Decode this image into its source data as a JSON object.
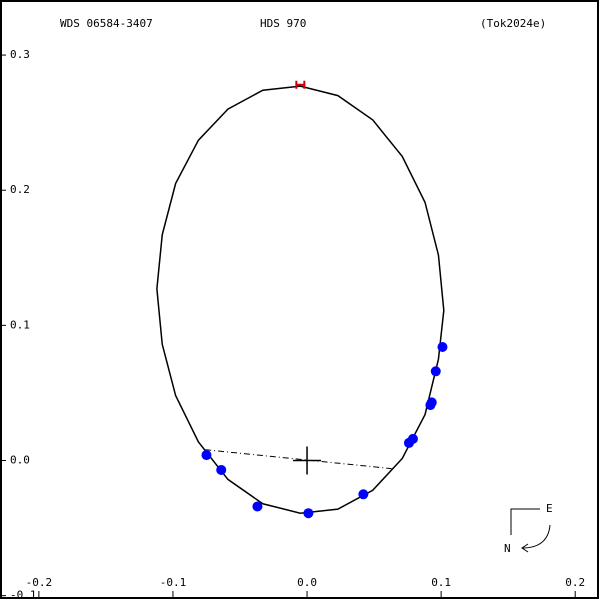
{
  "chart_data": {
    "type": "scatter",
    "header": [
      "WDS 06584-3407",
      "HDS 970",
      "(Tok2024e)"
    ],
    "x": [
      -0.075,
      -0.064,
      -0.037,
      0.001,
      0.042,
      0.076,
      0.079,
      0.092,
      0.093,
      0.096,
      0.101
    ],
    "y": [
      0.004,
      -0.007,
      -0.034,
      -0.039,
      -0.025,
      0.013,
      0.016,
      0.041,
      0.043,
      0.066,
      0.084
    ],
    "color": "#0000ff",
    "orbit": {
      "color": "#000000",
      "x": [
        0.102,
        0.098,
        0.088,
        0.071,
        0.049,
        0.023,
        -0.005,
        -0.033,
        -0.059,
        -0.081,
        -0.098,
        -0.108,
        -0.112,
        -0.108,
        -0.098,
        -0.081,
        -0.059,
        -0.033,
        -0.005,
        0.023,
        0.049,
        0.071,
        0.088,
        0.098
      ],
      "y": [
        0.111,
        0.152,
        0.191,
        0.225,
        0.252,
        0.27,
        0.277,
        0.274,
        0.26,
        0.237,
        0.205,
        0.167,
        0.127,
        0.086,
        0.048,
        0.0137,
        -0.014,
        -0.032,
        -0.039,
        -0.036,
        -0.022,
        0.0015,
        0.034,
        0.075
      ]
    },
    "periastron": {
      "x": -0.005,
      "y": 0.278,
      "color": "#cc0000"
    },
    "node_line": {
      "x": [
        -0.076,
        0.063
      ],
      "y": [
        0.008,
        -0.006
      ]
    },
    "compass": [
      "E",
      "N"
    ],
    "xlim": [
      -0.229,
      0.217
    ],
    "ylim": [
      -0.101,
      0.34
    ],
    "xticks": [
      -0.2,
      -0.1,
      {
        "value": 0,
        "label": "0.0"
      },
      0.1,
      0.2
    ],
    "yticks": [
      -0.1,
      {
        "value": 0,
        "label": "0.0"
      },
      0.1,
      0.2,
      0.3
    ]
  }
}
